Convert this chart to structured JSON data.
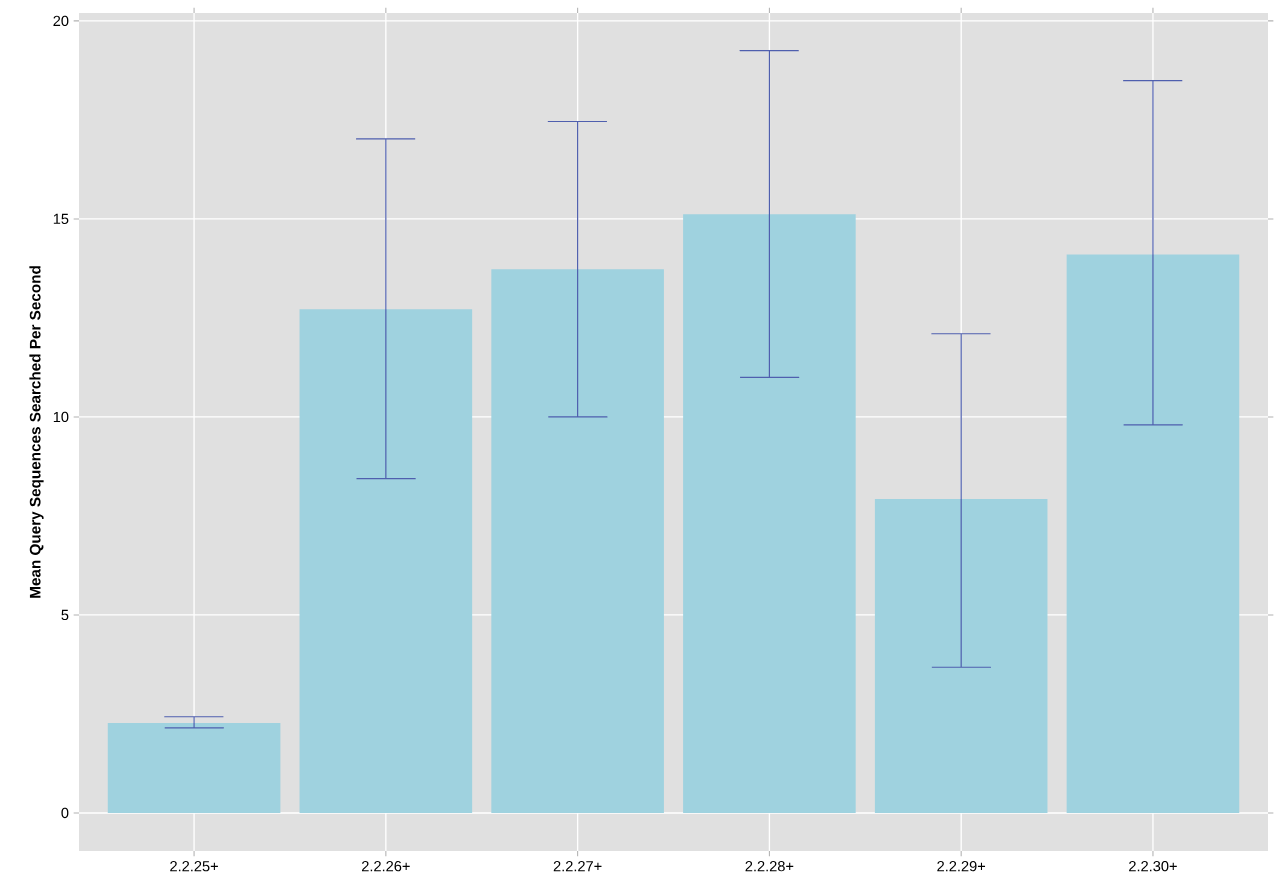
{
  "chart_data": {
    "type": "bar",
    "ylabel": "Mean Query Sequences Searched Per Second",
    "categories": [
      "2.2.25+",
      "2.2.26+",
      "2.2.27+",
      "2.2.28+",
      "2.2.29+",
      "2.2.30+"
    ],
    "values": [
      2.27,
      12.72,
      13.73,
      15.12,
      7.93,
      14.1
    ],
    "errors": [
      [
        2.15,
        2.43
      ],
      [
        8.44,
        17.02
      ],
      [
        10.0,
        17.46
      ],
      [
        11.0,
        19.25
      ],
      [
        3.68,
        12.1
      ],
      [
        9.8,
        18.49
      ]
    ],
    "color": "#9fd2df",
    "ylim": [
      -0.96,
      20.2
    ],
    "yticks": [
      0,
      5,
      10,
      15,
      20
    ],
    "grid": true
  }
}
